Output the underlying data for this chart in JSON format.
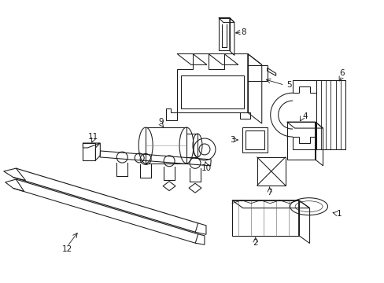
{
  "bg_color": "#ffffff",
  "line_color": "#1a1a1a",
  "fig_width": 4.89,
  "fig_height": 3.6,
  "dpi": 100,
  "lw": 0.75
}
